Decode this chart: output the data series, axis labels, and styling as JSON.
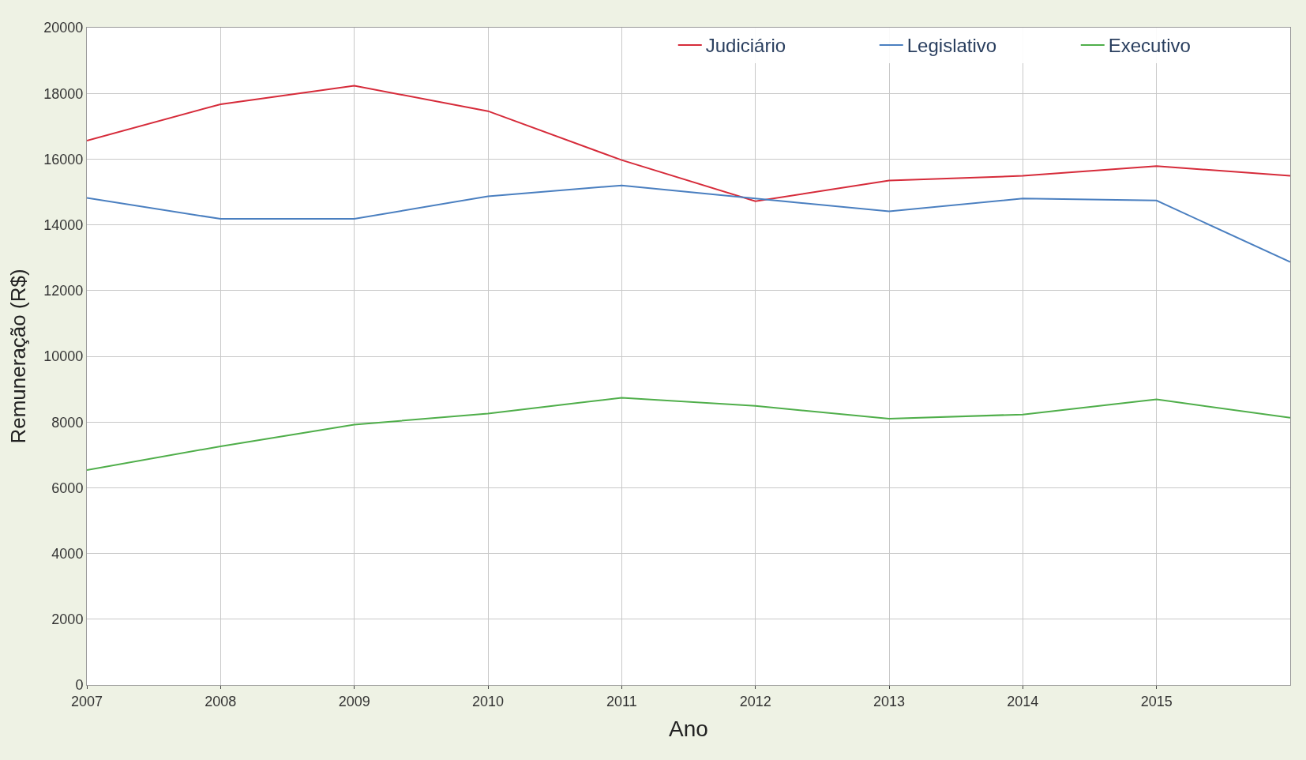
{
  "chart_data": {
    "type": "line",
    "xlabel": "Ano",
    "ylabel": "Remuneração (R$)",
    "x": [
      2007,
      2008,
      2009,
      2010,
      2011,
      2012,
      2013,
      2014,
      2015,
      2016
    ],
    "series": [
      {
        "name": "Judiciário",
        "color": "#d62b3a",
        "values": [
          16560,
          17670,
          18230,
          17460,
          15970,
          14720,
          15350,
          15490,
          15790,
          15490
        ]
      },
      {
        "name": "Legislativo",
        "color": "#4a7fc0",
        "values": [
          14820,
          14180,
          14180,
          14870,
          15200,
          14800,
          14410,
          14800,
          14740,
          12870
        ]
      },
      {
        "name": "Executivo",
        "color": "#4fae4a",
        "values": [
          6540,
          7260,
          7920,
          8260,
          8740,
          8490,
          8100,
          8230,
          8690,
          8130
        ]
      }
    ],
    "xlim": [
      2007,
      2016
    ],
    "xticks": [
      2007,
      2008,
      2009,
      2010,
      2011,
      2012,
      2013,
      2014,
      2015
    ],
    "ylim": [
      0,
      20000
    ],
    "yticks": [
      0,
      2000,
      4000,
      6000,
      8000,
      10000,
      12000,
      14000,
      16000,
      18000,
      20000
    ],
    "grid": true,
    "legend": "top right",
    "marker": "none",
    "line_style": "solid"
  }
}
